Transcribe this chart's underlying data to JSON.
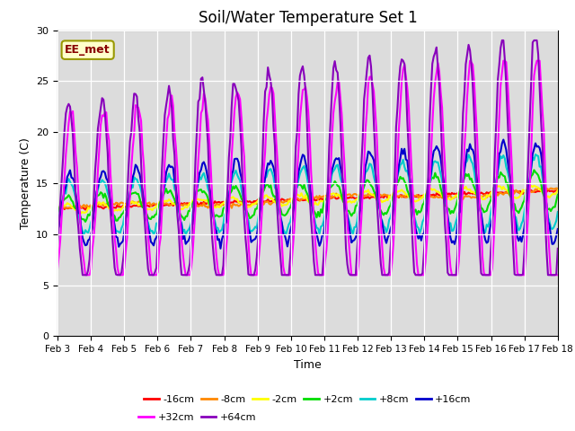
{
  "title": "Soil/Water Temperature Set 1",
  "xlabel": "Time",
  "ylabel": "Temperature (C)",
  "annotation": "EE_met",
  "ylim": [
    0,
    30
  ],
  "x_tick_labels": [
    "Feb 3",
    "Feb 4",
    "Feb 5",
    "Feb 6",
    "Feb 7",
    "Feb 8",
    "Feb 9",
    "Feb 10",
    "Feb 11",
    "Feb 12",
    "Feb 13",
    "Feb 14",
    "Feb 15",
    "Feb 16",
    "Feb 17",
    "Feb 18"
  ],
  "series": [
    {
      "label": "-16cm",
      "color": "#ff0000"
    },
    {
      "label": "-8cm",
      "color": "#ff8800"
    },
    {
      "label": "-2cm",
      "color": "#ffff00"
    },
    {
      "label": "+2cm",
      "color": "#00dd00"
    },
    {
      "label": "+8cm",
      "color": "#00cccc"
    },
    {
      "label": "+16cm",
      "color": "#0000cc"
    },
    {
      "label": "+32cm",
      "color": "#ff00ff"
    },
    {
      "label": "+64cm",
      "color": "#8800bb"
    }
  ],
  "background_color": "#dcdcdc",
  "title_fontsize": 12
}
